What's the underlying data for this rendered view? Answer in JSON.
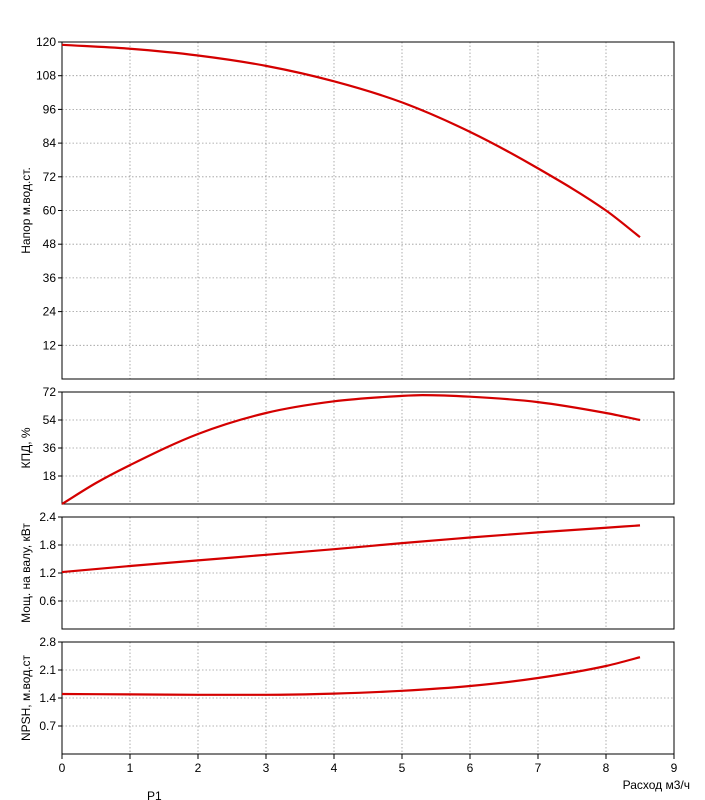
{
  "chart_data": {
    "type": "line",
    "colors": {
      "curve": "#d40000",
      "frame": "#000000",
      "grid": "#9a9a9a"
    },
    "x": {
      "label": "Расход м3/ч",
      "range": [
        0,
        9
      ],
      "ticks": [
        "0",
        "1",
        "2",
        "3",
        "4",
        "5",
        "6",
        "7",
        "8",
        "9"
      ]
    },
    "panels": [
      {
        "ylabel": "Напор м.вод.ст.",
        "ylim": [
          0,
          120
        ],
        "yticks": [
          "12",
          "24",
          "36",
          "48",
          "60",
          "72",
          "84",
          "96",
          "108",
          "120"
        ],
        "series": {
          "x": [
            0,
            1,
            2,
            3,
            4,
            5,
            6,
            7,
            8,
            8.5
          ],
          "y": [
            119,
            117.6,
            115.2,
            111.5,
            106,
            98.5,
            88,
            75,
            60,
            50.5
          ]
        }
      },
      {
        "ylabel": "КПД, %",
        "ylim": [
          0,
          72
        ],
        "yticks": [
          "18",
          "36",
          "54",
          "72"
        ],
        "series": {
          "x": [
            0,
            0.5,
            1,
            2,
            3,
            4,
            5,
            5.3,
            6,
            7,
            8,
            8.5
          ],
          "y": [
            0,
            13.5,
            25,
            45,
            58.5,
            66,
            69.5,
            70,
            69,
            65.5,
            58.5,
            54
          ]
        }
      },
      {
        "ylabel": "Мощ. на валу, кВт",
        "ylim": [
          0,
          2.4
        ],
        "yticks": [
          "0.6",
          "1.2",
          "1.8",
          "2.4"
        ],
        "series": {
          "x": [
            0,
            1,
            2,
            3,
            4,
            5,
            6,
            7,
            8,
            8.5
          ],
          "y": [
            1.22,
            1.35,
            1.47,
            1.59,
            1.71,
            1.84,
            1.96,
            2.07,
            2.17,
            2.22
          ]
        }
      },
      {
        "ylabel": "NPSH, м.вод.ст",
        "ylim": [
          0,
          2.8
        ],
        "yticks": [
          "0.7",
          "1.4",
          "2.1",
          "2.8"
        ],
        "series": {
          "x": [
            0,
            1,
            2,
            3,
            4,
            5,
            6,
            7,
            8,
            8.5
          ],
          "y": [
            1.5,
            1.49,
            1.48,
            1.48,
            1.51,
            1.58,
            1.7,
            1.9,
            2.2,
            2.42
          ]
        }
      }
    ],
    "footer_label": "P1"
  }
}
